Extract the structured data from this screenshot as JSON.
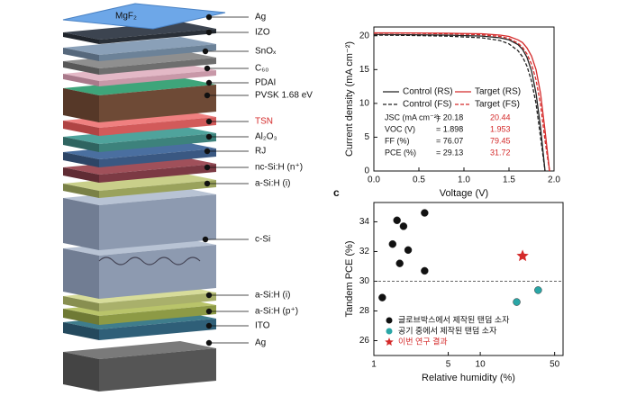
{
  "diagram": {
    "top_layer": "MgF₂",
    "labels": [
      {
        "text": "Ag"
      },
      {
        "text": "IZO"
      },
      {
        "text": "SnOₓ"
      },
      {
        "text": "C₆₀"
      },
      {
        "text": "PDAI"
      },
      {
        "text": "PVSK 1.68 eV"
      },
      {
        "text": "TSN",
        "color": "#d42a2a"
      },
      {
        "text": "Al₂O₃"
      },
      {
        "text": "RJ"
      },
      {
        "text": "nc-Si:H (n⁺)"
      },
      {
        "text": "a-Si:H (i)"
      },
      {
        "text": "c-Si"
      },
      {
        "text": "a-Si:H (i)"
      },
      {
        "text": "a-Si:H (p⁺)"
      },
      {
        "text": "ITO"
      },
      {
        "text": "Ag"
      }
    ]
  },
  "chart_data": [
    {
      "type": "line",
      "xlabel": "Voltage (V)",
      "ylabel": "Current density (mA cm⁻²)",
      "x": [
        0,
        0.4,
        0.8,
        1.2,
        1.4,
        1.5,
        1.6,
        1.65,
        1.7,
        1.75,
        1.8,
        1.85,
        1.9,
        1.95
      ],
      "xlim": [
        0,
        2.0
      ],
      "xticks": [
        {
          "value": 0,
          "label": "0.0"
        },
        0.5,
        {
          "value": 1,
          "label": "1.0"
        },
        1.5,
        {
          "value": 2,
          "label": "2.0"
        }
      ],
      "ylim": [
        0,
        21.3
      ],
      "yticks": [
        0,
        5,
        10,
        15,
        20
      ],
      "series": [
        {
          "name": "Control (RS)",
          "color": "#222222",
          "linestyle": "solid",
          "values": [
            20.18,
            20.15,
            20.1,
            19.95,
            19.7,
            19.4,
            18.7,
            18.0,
            16.8,
            14.8,
            11.5,
            6.5,
            0,
            null
          ]
        },
        {
          "name": "Control (FS)",
          "color": "#222222",
          "linestyle": "dashed",
          "values": [
            20.1,
            20.05,
            19.95,
            19.7,
            19.3,
            18.8,
            17.8,
            16.9,
            15.5,
            13.3,
            10.0,
            5.0,
            0,
            null
          ]
        },
        {
          "name": "Target (RS)",
          "color": "#d42a2a",
          "linestyle": "solid",
          "values": [
            20.44,
            20.42,
            20.38,
            20.3,
            20.1,
            19.9,
            19.4,
            19.0,
            18.2,
            17.0,
            15.0,
            11.5,
            6.0,
            0
          ]
        },
        {
          "name": "Target (FS)",
          "color": "#d42a2a",
          "linestyle": "dashed",
          "values": [
            20.4,
            20.38,
            20.3,
            20.15,
            19.9,
            19.6,
            18.9,
            18.3,
            17.3,
            15.8,
            13.5,
            9.8,
            4.5,
            0
          ]
        }
      ],
      "stats": [
        [
          "JSC (mA cm⁻²)",
          "= 20.18",
          "20.44"
        ],
        [
          "VOC (V)",
          "= 1.898",
          "1.953"
        ],
        [
          "FF (%)",
          "= 76.07",
          "79.45"
        ],
        [
          "PCE (%)",
          "= 29.13",
          "31.72"
        ]
      ]
    },
    {
      "type": "scatter",
      "panel": "c",
      "xlabel": "Relative humidity (%)",
      "ylabel": "Tandem PCE (%)",
      "xscale": "log",
      "xlim": [
        1,
        60
      ],
      "xticks": [
        1,
        5,
        10,
        50
      ],
      "ylim": [
        25,
        35.3
      ],
      "yticks": [
        26,
        28,
        30,
        32,
        34
      ],
      "hline": 30,
      "series": [
        {
          "name": "글로브박스에서 제작된 탠덤 소자",
          "color": "#111111",
          "marker": "circle",
          "x": [
            1.2,
            1.5,
            1.65,
            1.75,
            1.9,
            2.1,
            3.0,
            3.0
          ],
          "values": [
            28.9,
            32.5,
            34.1,
            31.2,
            33.7,
            32.1,
            34.6,
            30.7
          ]
        },
        {
          "name": "공기 중에서 제작된 탠덤 소자",
          "color": "#2aa6a6",
          "marker": "circle",
          "x": [
            22,
            35
          ],
          "values": [
            28.6,
            29.4
          ]
        },
        {
          "name": "이번 연구 결과",
          "color": "#d42a2a",
          "marker": "star",
          "x": [
            25
          ],
          "values": [
            31.7
          ]
        }
      ]
    }
  ]
}
